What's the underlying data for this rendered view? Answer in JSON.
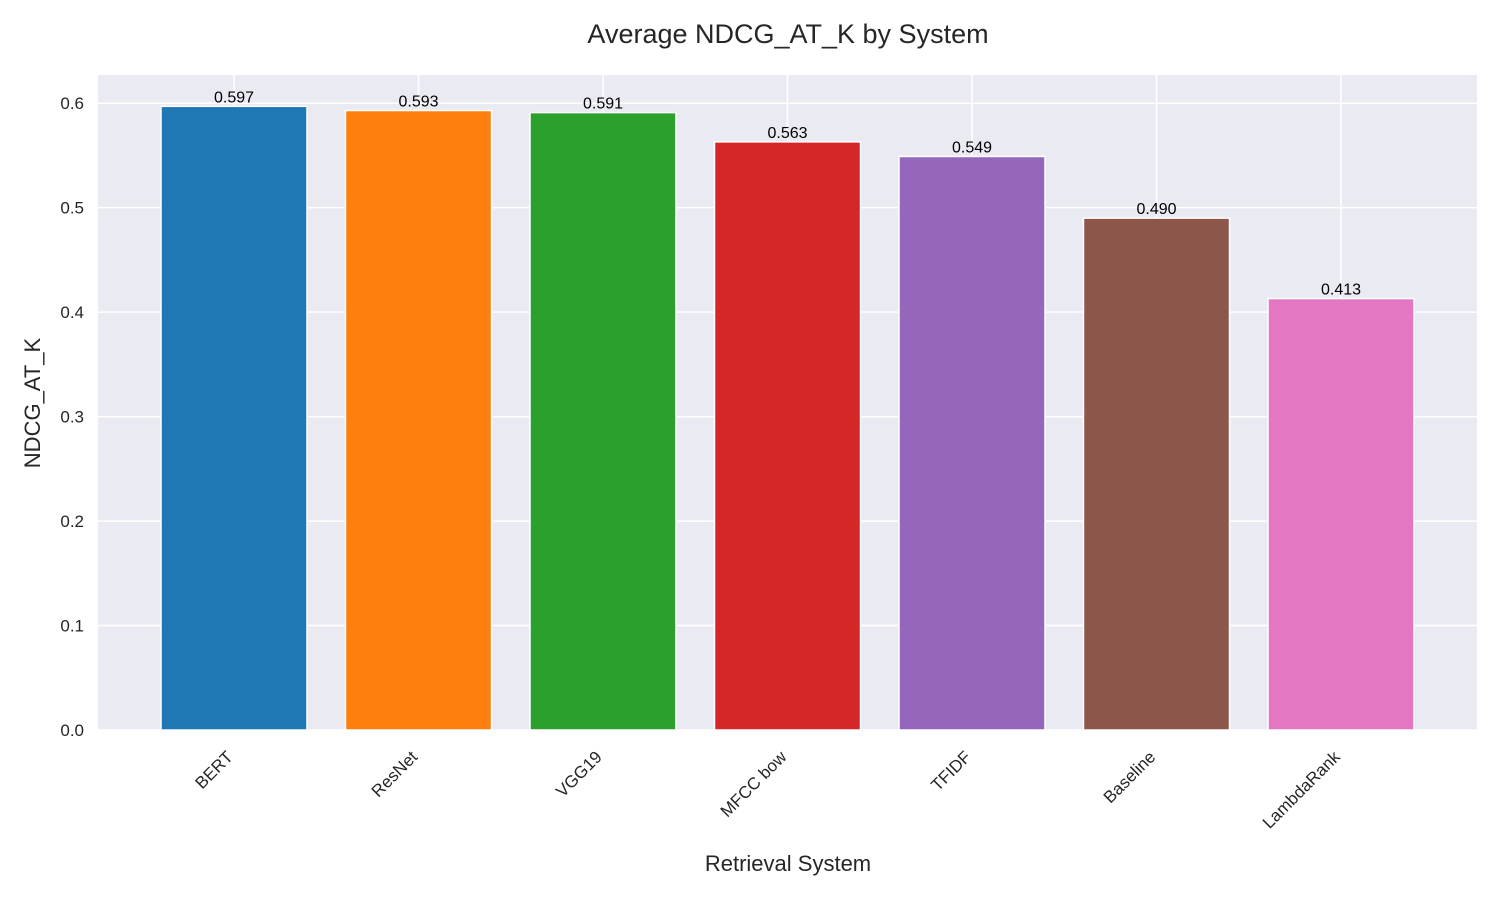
{
  "chart_data": {
    "type": "bar",
    "title": "Average NDCG_AT_K by System",
    "xlabel": "Retrieval System",
    "ylabel": "NDCG_AT_K",
    "categories": [
      "BERT",
      "ResNet",
      "VGG19",
      "MFCC bow",
      "TFIDF",
      "Baseline",
      "LambdaRank"
    ],
    "values": [
      0.597,
      0.593,
      0.591,
      0.563,
      0.549,
      0.49,
      0.413
    ],
    "value_labels": [
      "0.597",
      "0.593",
      "0.591",
      "0.563",
      "0.549",
      "0.490",
      "0.413"
    ],
    "colors": [
      "#1f77b4",
      "#ff7f0e",
      "#2ca02c",
      "#d62728",
      "#9467bd",
      "#8c564b",
      "#e377c2"
    ],
    "ylim": [
      0,
      0.627
    ],
    "yticks": [
      0.0,
      0.1,
      0.2,
      0.3,
      0.4,
      0.5,
      0.6
    ],
    "ytick_labels": [
      "0.0",
      "0.1",
      "0.2",
      "0.3",
      "0.4",
      "0.5",
      "0.6"
    ],
    "grid": true,
    "background_color": "#eaeaf2",
    "grid_color": "#ffffff",
    "xtick_rotation_deg": 45
  }
}
